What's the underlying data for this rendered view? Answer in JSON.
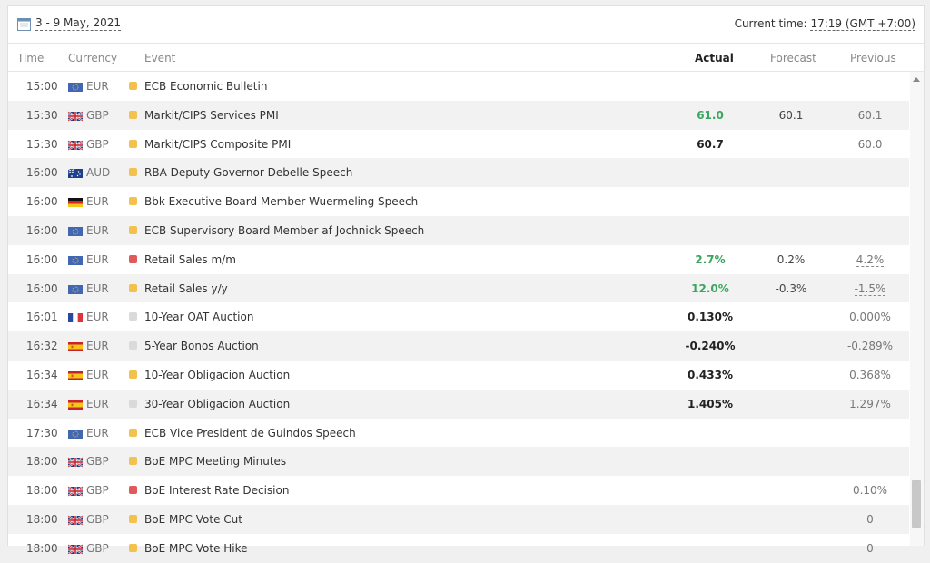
{
  "toolbar": {
    "date_range": "3 - 9 May, 2021",
    "current_time_label": "Current time:",
    "current_time_value": "17:19 (GMT +7:00)"
  },
  "columns": {
    "time": "Time",
    "currency": "Currency",
    "event": "Event",
    "actual": "Actual",
    "forecast": "Forecast",
    "previous": "Previous"
  },
  "colors": {
    "actual_positive": "#3aa660",
    "importance_high": "#e05a5a",
    "importance_medium": "#f2c14e",
    "importance_low": "#dadada"
  },
  "rows": [
    {
      "time": "15:00",
      "flag": "eu-flag-icon",
      "currency": "EUR",
      "importance": "medium",
      "event": "ECB Economic Bulletin",
      "actual": "",
      "forecast": "",
      "previous": ""
    },
    {
      "time": "15:30",
      "flag": "uk-flag-icon",
      "currency": "GBP",
      "importance": "medium",
      "event": "Markit/CIPS Services PMI",
      "actual": "61.0",
      "forecast": "60.1",
      "previous": "60.1"
    },
    {
      "time": "15:30",
      "flag": "uk-flag-icon",
      "currency": "GBP",
      "importance": "medium",
      "event": "Markit/CIPS Composite PMI",
      "actual": "60.7",
      "forecast": "",
      "previous": "60.0"
    },
    {
      "time": "16:00",
      "flag": "au-flag-icon",
      "currency": "AUD",
      "importance": "medium",
      "event": "RBA Deputy Governor Debelle Speech",
      "actual": "",
      "forecast": "",
      "previous": ""
    },
    {
      "time": "16:00",
      "flag": "de-flag-icon",
      "currency": "EUR",
      "importance": "medium",
      "event": "Bbk Executive Board Member Wuermeling Speech",
      "actual": "",
      "forecast": "",
      "previous": ""
    },
    {
      "time": "16:00",
      "flag": "eu-flag-icon",
      "currency": "EUR",
      "importance": "medium",
      "event": "ECB Supervisory Board Member af Jochnick Speech",
      "actual": "",
      "forecast": "",
      "previous": ""
    },
    {
      "time": "16:00",
      "flag": "eu-flag-icon",
      "currency": "EUR",
      "importance": "high",
      "event": "Retail Sales m/m",
      "actual": "2.7%",
      "forecast": "0.2%",
      "previous": "4.2%"
    },
    {
      "time": "16:00",
      "flag": "eu-flag-icon",
      "currency": "EUR",
      "importance": "medium",
      "event": "Retail Sales y/y",
      "actual": "12.0%",
      "forecast": "-0.3%",
      "previous": "-1.5%"
    },
    {
      "time": "16:01",
      "flag": "fr-flag-icon",
      "currency": "EUR",
      "importance": "low",
      "event": "10-Year OAT Auction",
      "actual": "0.130%",
      "forecast": "",
      "previous": "0.000%"
    },
    {
      "time": "16:32",
      "flag": "es-flag-icon",
      "currency": "EUR",
      "importance": "low",
      "event": "5-Year Bonos Auction",
      "actual": "-0.240%",
      "forecast": "",
      "previous": "-0.289%"
    },
    {
      "time": "16:34",
      "flag": "es-flag-icon",
      "currency": "EUR",
      "importance": "medium",
      "event": "10-Year Obligacion Auction",
      "actual": "0.433%",
      "forecast": "",
      "previous": "0.368%"
    },
    {
      "time": "16:34",
      "flag": "es-flag-icon",
      "currency": "EUR",
      "importance": "low",
      "event": "30-Year Obligacion Auction",
      "actual": "1.405%",
      "forecast": "",
      "previous": "1.297%"
    },
    {
      "time": "17:30",
      "flag": "eu-flag-icon",
      "currency": "EUR",
      "importance": "medium",
      "event": "ECB Vice President de Guindos Speech",
      "actual": "",
      "forecast": "",
      "previous": ""
    },
    {
      "time": "18:00",
      "flag": "uk-flag-icon",
      "currency": "GBP",
      "importance": "medium",
      "event": "BoE MPC Meeting Minutes",
      "actual": "",
      "forecast": "",
      "previous": ""
    },
    {
      "time": "18:00",
      "flag": "uk-flag-icon",
      "currency": "GBP",
      "importance": "high",
      "event": "BoE Interest Rate Decision",
      "actual": "",
      "forecast": "",
      "previous": "0.10%"
    },
    {
      "time": "18:00",
      "flag": "uk-flag-icon",
      "currency": "GBP",
      "importance": "medium",
      "event": "BoE MPC Vote Cut",
      "actual": "",
      "forecast": "",
      "previous": "0"
    },
    {
      "time": "18:00",
      "flag": "uk-flag-icon",
      "currency": "GBP",
      "importance": "medium",
      "event": "BoE MPC Vote Hike",
      "actual": "",
      "forecast": "",
      "previous": "0"
    }
  ]
}
